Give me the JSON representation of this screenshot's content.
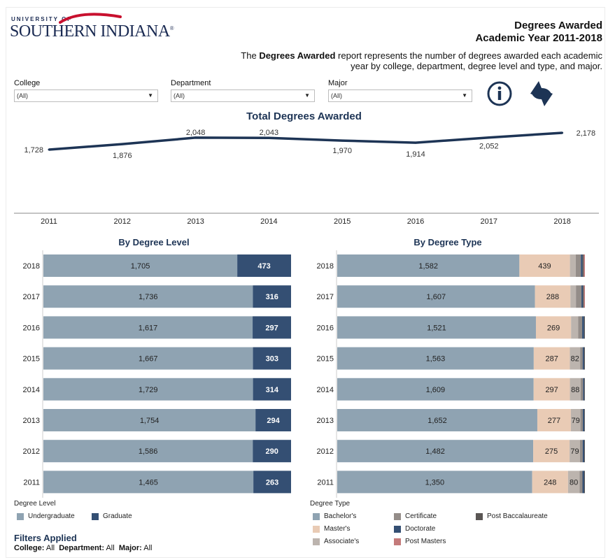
{
  "header": {
    "logo_small_text": "UNIVERSITY OF",
    "logo_main_text": "SOUTHERN INDIANA",
    "logo_registered": "®",
    "title_line1": "Degrees Awarded",
    "title_line2": "Academic Year 2011-2018",
    "desc_prefix": "The",
    "desc_bold": "Degrees Awarded",
    "desc_rest": "report represents the number of degrees awarded each academic year by college, department, degree level and type, and major."
  },
  "filters": [
    {
      "label": "College",
      "value": "(All)"
    },
    {
      "label": "Department",
      "value": "(All)"
    },
    {
      "label": "Major",
      "value": "(All)"
    }
  ],
  "toolbar": {
    "info_icon": "info-icon",
    "refresh_icon": "refresh-icon"
  },
  "colors": {
    "navy": "#1d3455",
    "undergrad": "#8fa3b2",
    "graduate": "#344f73",
    "bachelors": "#8fa3b2",
    "masters": "#e9cbb5",
    "associates": "#bcb4ae",
    "certificate": "#948d89",
    "doctorate": "#344f73",
    "post_masters": "#c47a7a",
    "post_bacc": "#5a5654"
  },
  "chart_data": [
    {
      "type": "line",
      "title": "Total Degrees Awarded",
      "x": [
        "2011",
        "2012",
        "2013",
        "2014",
        "2015",
        "2016",
        "2017",
        "2018"
      ],
      "series": [
        {
          "values": [
            1728,
            1876,
            2048,
            2043,
            1970,
            1914,
            2052,
            2178
          ]
        }
      ],
      "value_labels": [
        "1,728",
        "1,876",
        "2,048",
        "2,043",
        "1,970",
        "1,914",
        "2,052",
        "2,178"
      ]
    },
    {
      "type": "bar",
      "title": "By Degree Level",
      "orientation": "horizontal-stacked",
      "categories": [
        "2018",
        "2017",
        "2016",
        "2015",
        "2014",
        "2013",
        "2012",
        "2011"
      ],
      "series": [
        {
          "name": "Undergraduate",
          "values": [
            1705,
            1736,
            1617,
            1667,
            1729,
            1754,
            1586,
            1465
          ],
          "labels": [
            "1,705",
            "1,736",
            "1,617",
            "1,667",
            "1,729",
            "1,754",
            "1,586",
            "1,465"
          ]
        },
        {
          "name": "Graduate",
          "values": [
            473,
            316,
            297,
            303,
            314,
            294,
            290,
            263
          ],
          "labels": [
            "473",
            "316",
            "297",
            "303",
            "314",
            "294",
            "290",
            "263"
          ]
        }
      ],
      "legend_title": "Degree Level"
    },
    {
      "type": "bar",
      "title": "By Degree Type",
      "orientation": "horizontal-stacked",
      "categories": [
        "2018",
        "2017",
        "2016",
        "2015",
        "2014",
        "2013",
        "2012",
        "2011"
      ],
      "series": [
        {
          "name": "Bachelor's",
          "values": [
            1582,
            1607,
            1521,
            1563,
            1609,
            1652,
            1482,
            1350
          ],
          "labels": [
            "1,582",
            "1,607",
            "1,521",
            "1,563",
            "1,609",
            "1,652",
            "1,482",
            "1,350"
          ]
        },
        {
          "name": "Master's",
          "values": [
            439,
            288,
            269,
            287,
            297,
            277,
            275,
            248
          ],
          "labels": [
            "439",
            "288",
            "269",
            "287",
            "297",
            "277",
            "275",
            "248"
          ]
        },
        {
          "name": "Associate's",
          "values": [
            50,
            45,
            55,
            82,
            88,
            79,
            79,
            80
          ],
          "labels": [
            "",
            "",
            "",
            "82",
            "88",
            "79",
            "79",
            "80"
          ]
        },
        {
          "name": "Certificate",
          "values": [
            45,
            45,
            30,
            20,
            20,
            20,
            20,
            20
          ],
          "labels": [
            "",
            "",
            "",
            "",
            "",
            "",
            "",
            ""
          ]
        },
        {
          "name": "Doctorate",
          "values": [
            15,
            12,
            15,
            12,
            10,
            12,
            12,
            12
          ],
          "labels": [
            "",
            "",
            "",
            "",
            "",
            "",
            "",
            ""
          ]
        },
        {
          "name": "Post Baccalaureate",
          "values": [
            10,
            8,
            6,
            6,
            5,
            5,
            5,
            5
          ],
          "labels": [
            "",
            "",
            "",
            "",
            "",
            "",
            "",
            ""
          ]
        },
        {
          "name": "Post Masters",
          "values": [
            10,
            8,
            0,
            0,
            0,
            0,
            0,
            0
          ],
          "labels": [
            "",
            "",
            "",
            "",
            "",
            "",
            "",
            ""
          ]
        }
      ],
      "legend_title": "Degree Type"
    }
  ],
  "legend_level": {
    "title": "Degree Level",
    "items": [
      "Undergraduate",
      "Graduate"
    ]
  },
  "legend_type": {
    "title": "Degree Type",
    "items": [
      "Bachelor's",
      "Master's",
      "Associate's",
      "Certificate",
      "Doctorate",
      "Post Masters",
      "Post Baccalaureate"
    ]
  },
  "filters_applied": {
    "title": "Filters Applied",
    "college_label": "College:",
    "college_value": "All",
    "department_label": "Department:",
    "department_value": "All",
    "major_label": "Major:",
    "major_value": "All"
  }
}
